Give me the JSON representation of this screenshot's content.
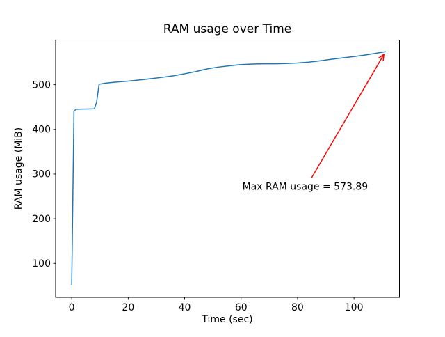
{
  "figure": {
    "background": "#ffffff"
  },
  "chart_data": {
    "type": "line",
    "title": "RAM usage over Time",
    "xlabel": "Time (sec)",
    "ylabel": "RAM usage (MiB)",
    "xlim": [
      -5.7,
      116.1
    ],
    "ylim": [
      24,
      600
    ],
    "x_ticks": [
      0,
      20,
      40,
      60,
      80,
      100
    ],
    "y_ticks": [
      100,
      200,
      300,
      400,
      500
    ],
    "grid": false,
    "legend": "none",
    "line_color": "#1f77b4",
    "axis_color": "#000000",
    "max_value": 573.89,
    "series": [
      {
        "name": "RAM usage",
        "points": [
          [
            0,
            52
          ],
          [
            0.8,
            441
          ],
          [
            1.6,
            445
          ],
          [
            4,
            445.5
          ],
          [
            8,
            446
          ],
          [
            8.8,
            460
          ],
          [
            9.7,
            501
          ],
          [
            12,
            503.5
          ],
          [
            16,
            506
          ],
          [
            20,
            508
          ],
          [
            24,
            510.5
          ],
          [
            28,
            513.5
          ],
          [
            32,
            516.5
          ],
          [
            36,
            520
          ],
          [
            40,
            524.5
          ],
          [
            44,
            529.5
          ],
          [
            48,
            535.5
          ],
          [
            52,
            539.5
          ],
          [
            56,
            542.5
          ],
          [
            60,
            545
          ],
          [
            64,
            546.3
          ],
          [
            68,
            546.8
          ],
          [
            72,
            546.8
          ],
          [
            76,
            547.3
          ],
          [
            80,
            548.5
          ],
          [
            84,
            550.5
          ],
          [
            88,
            553.5
          ],
          [
            92,
            557
          ],
          [
            96,
            560
          ],
          [
            100,
            563
          ],
          [
            104,
            566.5
          ],
          [
            108,
            570.5
          ],
          [
            111.1,
            573.89
          ]
        ]
      }
    ],
    "annotation": {
      "label": "Max RAM usage = 573.89",
      "color": "#ff0000",
      "text_x": 82.7,
      "text_y": 265,
      "arrow_tail": [
        85,
        292
      ],
      "arrow_head": [
        110.6,
        568
      ]
    }
  }
}
